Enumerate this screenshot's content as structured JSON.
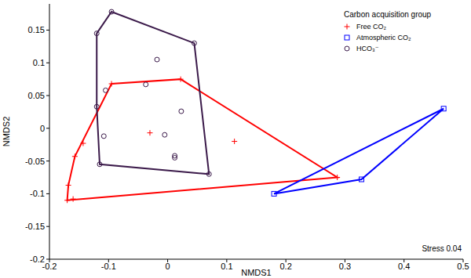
{
  "chart_data": {
    "type": "scatter",
    "x_label": "NMDS1",
    "y_label": "NMDS2",
    "legend_title": "Carbon acquisition group",
    "annotations": [
      "Stress 0.04"
    ],
    "legend": "top-right",
    "grid": false,
    "xlim": [
      -0.2,
      0.5
    ],
    "ylim": [
      -0.2,
      0.19
    ],
    "xticks": [
      -0.2,
      -0.1,
      0,
      0.1,
      0.2,
      0.3,
      0.4,
      0.5
    ],
    "yticks": [
      -0.2,
      -0.15,
      -0.1,
      -0.05,
      0,
      0.05,
      0.1,
      0.15
    ],
    "series": [
      {
        "name": "Free CO₂",
        "color": "#ff0000",
        "marker": "plus",
        "x": [
          -0.17,
          -0.16,
          -0.168,
          -0.157,
          -0.143,
          -0.095,
          0.022,
          -0.03,
          0.113,
          0.287
        ],
        "values": [
          -0.11,
          -0.108,
          -0.087,
          -0.043,
          -0.023,
          0.068,
          0.075,
          -0.007,
          -0.02,
          -0.075
        ]
      },
      {
        "name": "Atmospheric CO₂",
        "color": "#0000ff",
        "marker": "square",
        "x": [
          0.18,
          0.328,
          0.467
        ],
        "values": [
          -0.1,
          -0.078,
          0.03
        ]
      },
      {
        "name": "HCO₃⁻",
        "color": "#3b1a4a",
        "marker": "circle",
        "x": [
          -0.12,
          -0.095,
          0.045,
          0.07,
          -0.115,
          -0.12,
          -0.018,
          -0.105,
          -0.037,
          -0.108,
          0.023,
          -0.005,
          0.012,
          0.012
        ],
        "values": [
          0.145,
          0.178,
          0.13,
          -0.07,
          -0.055,
          0.033,
          0.105,
          0.058,
          0.067,
          -0.012,
          0.026,
          -0.01,
          -0.042,
          -0.045
        ]
      }
    ]
  }
}
